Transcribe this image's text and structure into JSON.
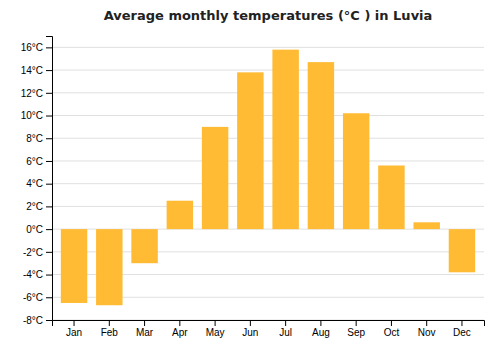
{
  "chart_data": {
    "type": "bar",
    "title": "Average monthly temperatures (°C ) in Luvia",
    "categories": [
      "Jan",
      "Feb",
      "Mar",
      "Apr",
      "May",
      "Jun",
      "Jul",
      "Aug",
      "Sep",
      "Oct",
      "Nov",
      "Dec"
    ],
    "values": [
      -6.5,
      -6.7,
      -3.0,
      2.5,
      9.0,
      13.8,
      15.8,
      14.7,
      10.2,
      5.6,
      0.6,
      -3.8
    ],
    "color": "#FFBB33",
    "ylim": [
      -8,
      17
    ],
    "yticks": [
      {
        "value": -8,
        "label": "-8°C"
      },
      {
        "value": -6,
        "label": "-6°C"
      },
      {
        "value": -4,
        "label": "-4°C"
      },
      {
        "value": -2,
        "label": "-2°C"
      },
      {
        "value": 0,
        "label": "0°C"
      },
      {
        "value": 2,
        "label": "2°C"
      },
      {
        "value": 4,
        "label": "4°C"
      },
      {
        "value": 6,
        "label": "6°C"
      },
      {
        "value": 8,
        "label": "8°C"
      },
      {
        "value": 10,
        "label": "10°C"
      },
      {
        "value": 12,
        "label": "12°C"
      },
      {
        "value": 14,
        "label": "14°C"
      },
      {
        "value": 16,
        "label": "16°C"
      }
    ],
    "grid": true
  }
}
